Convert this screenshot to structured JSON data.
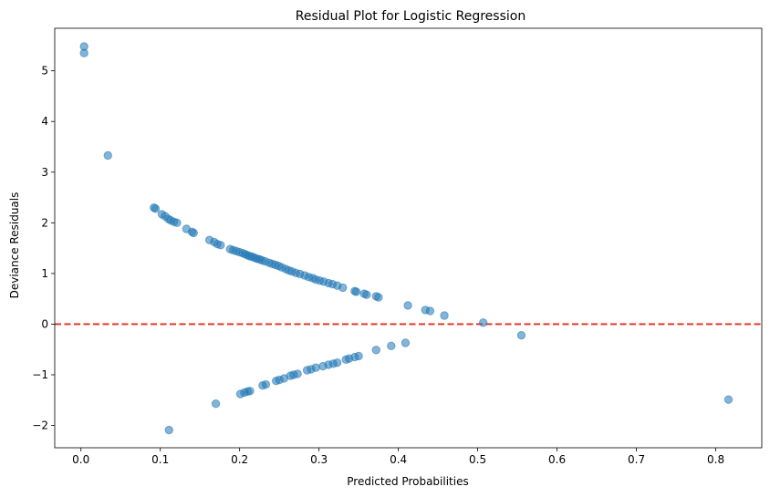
{
  "chart_data": {
    "type": "scatter",
    "title": "Residual Plot for Logistic Regression",
    "xlabel": "Predicted Probabilities",
    "ylabel": "Deviance Residuals",
    "xlim": [
      -0.033,
      0.858
    ],
    "ylim": [
      -2.44,
      5.84
    ],
    "xticks": [
      0.0,
      0.1,
      0.2,
      0.3,
      0.4,
      0.5,
      0.6,
      0.7,
      0.8
    ],
    "xtick_labels": [
      "0.0",
      "0.1",
      "0.2",
      "0.3",
      "0.4",
      "0.5",
      "0.6",
      "0.7",
      "0.8"
    ],
    "yticks": [
      -2,
      -1,
      0,
      1,
      2,
      3,
      4,
      5
    ],
    "ytick_labels": [
      "−2",
      "−1",
      "0",
      "1",
      "2",
      "3",
      "4",
      "5"
    ],
    "reference_line": {
      "y": 0,
      "color": "#e8291c",
      "style": "dashed"
    },
    "marker_color": "#1f77b4",
    "marker_opacity": 0.55,
    "grid": false,
    "points": [
      [
        0.004,
        5.48
      ],
      [
        0.004,
        5.35
      ],
      [
        0.034,
        3.33
      ],
      [
        0.092,
        2.3
      ],
      [
        0.094,
        2.28
      ],
      [
        0.102,
        2.17
      ],
      [
        0.106,
        2.13
      ],
      [
        0.11,
        2.08
      ],
      [
        0.113,
        2.05
      ],
      [
        0.117,
        2.02
      ],
      [
        0.121,
        2.0
      ],
      [
        0.133,
        1.88
      ],
      [
        0.14,
        1.82
      ],
      [
        0.142,
        1.8
      ],
      [
        0.162,
        1.66
      ],
      [
        0.168,
        1.62
      ],
      [
        0.172,
        1.58
      ],
      [
        0.176,
        1.56
      ],
      [
        0.188,
        1.48
      ],
      [
        0.192,
        1.46
      ],
      [
        0.196,
        1.44
      ],
      [
        0.2,
        1.42
      ],
      [
        0.204,
        1.4
      ],
      [
        0.207,
        1.38
      ],
      [
        0.21,
        1.36
      ],
      [
        0.213,
        1.34
      ],
      [
        0.216,
        1.33
      ],
      [
        0.219,
        1.31
      ],
      [
        0.222,
        1.29
      ],
      [
        0.225,
        1.28
      ],
      [
        0.228,
        1.26
      ],
      [
        0.232,
        1.24
      ],
      [
        0.237,
        1.21
      ],
      [
        0.241,
        1.19
      ],
      [
        0.245,
        1.17
      ],
      [
        0.249,
        1.15
      ],
      [
        0.253,
        1.12
      ],
      [
        0.258,
        1.09
      ],
      [
        0.262,
        1.06
      ],
      [
        0.266,
        1.04
      ],
      [
        0.271,
        1.01
      ],
      [
        0.276,
        0.99
      ],
      [
        0.282,
        0.96
      ],
      [
        0.287,
        0.93
      ],
      [
        0.292,
        0.91
      ],
      [
        0.296,
        0.88
      ],
      [
        0.301,
        0.86
      ],
      [
        0.306,
        0.84
      ],
      [
        0.312,
        0.81
      ],
      [
        0.317,
        0.79
      ],
      [
        0.323,
        0.76
      ],
      [
        0.33,
        0.72
      ],
      [
        0.345,
        0.65
      ],
      [
        0.347,
        0.64
      ],
      [
        0.357,
        0.6
      ],
      [
        0.36,
        0.58
      ],
      [
        0.372,
        0.55
      ],
      [
        0.375,
        0.53
      ],
      [
        0.412,
        0.37
      ],
      [
        0.434,
        0.28
      ],
      [
        0.44,
        0.26
      ],
      [
        0.458,
        0.17
      ],
      [
        0.507,
        0.03
      ],
      [
        0.555,
        -0.22
      ],
      [
        0.111,
        -2.09
      ],
      [
        0.17,
        -1.57
      ],
      [
        0.201,
        -1.38
      ],
      [
        0.206,
        -1.35
      ],
      [
        0.21,
        -1.33
      ],
      [
        0.213,
        -1.32
      ],
      [
        0.229,
        -1.21
      ],
      [
        0.233,
        -1.19
      ],
      [
        0.246,
        -1.12
      ],
      [
        0.25,
        -1.1
      ],
      [
        0.256,
        -1.07
      ],
      [
        0.264,
        -1.02
      ],
      [
        0.268,
        -1.0
      ],
      [
        0.273,
        -0.98
      ],
      [
        0.285,
        -0.91
      ],
      [
        0.29,
        -0.89
      ],
      [
        0.296,
        -0.86
      ],
      [
        0.305,
        -0.83
      ],
      [
        0.312,
        -0.8
      ],
      [
        0.318,
        -0.78
      ],
      [
        0.323,
        -0.76
      ],
      [
        0.334,
        -0.7
      ],
      [
        0.338,
        -0.68
      ],
      [
        0.345,
        -0.65
      ],
      [
        0.35,
        -0.63
      ],
      [
        0.372,
        -0.51
      ],
      [
        0.391,
        -0.43
      ],
      [
        0.409,
        -0.37
      ],
      [
        0.816,
        -1.49
      ]
    ]
  }
}
